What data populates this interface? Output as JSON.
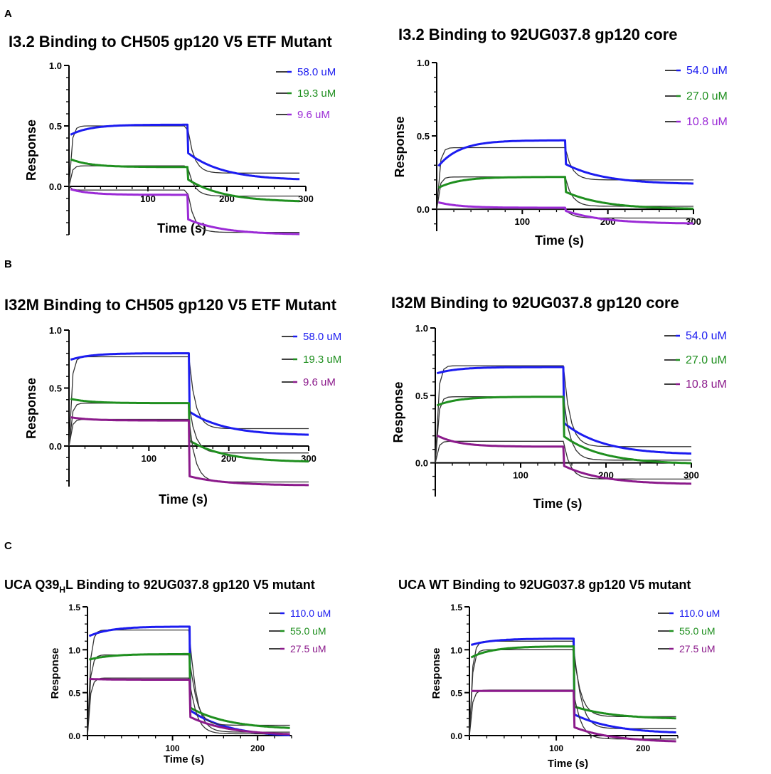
{
  "panel_labels": [
    "A",
    "B",
    "C"
  ],
  "chart_data": [
    {
      "type": "line",
      "title": "I3.2 Binding to CH505 gp120 V5 ETF Mutant",
      "xlabel": "Time (s)",
      "ylabel": "Response",
      "xlim": [
        0,
        300
      ],
      "ylim": [
        -0.4,
        1.0
      ],
      "xticks": [
        100,
        200,
        300
      ],
      "yticks": [
        0.0,
        0.5,
        1.0
      ],
      "ytick_labels": [
        "0.0",
        "0.5",
        "1.0"
      ],
      "series": [
        {
          "name": "58.0 uM",
          "color": "#1c1cf0",
          "assoc_start": 0.42,
          "assoc_end": 0.51,
          "dissoc_start": 0.28,
          "dissoc_end": 0.05,
          "fit_level": 0.5,
          "fit_end": 0.11
        },
        {
          "name": "19.3 uM",
          "color": "#1f8f1f",
          "assoc_start": 0.23,
          "assoc_end": 0.16,
          "dissoc_start": 0.06,
          "dissoc_end": -0.13,
          "fit_level": 0.17,
          "fit_end": -0.08
        },
        {
          "name": "9.6 uM",
          "color": "#9b2ad6",
          "assoc_start": -0.02,
          "assoc_end": -0.07,
          "dissoc_start": -0.27,
          "dissoc_end": -0.4,
          "fit_level": -0.03,
          "fit_end": -0.38
        }
      ]
    },
    {
      "type": "line",
      "title": "I3.2 Binding to 92UG037.8 gp120 core",
      "xlabel": "Time (s)",
      "ylabel": "Response",
      "xlim": [
        0,
        300
      ],
      "ylim": [
        -0.15,
        1.0
      ],
      "xticks": [
        100,
        200,
        300
      ],
      "yticks": [
        0.0,
        0.5,
        1.0
      ],
      "ytick_labels": [
        "0.0",
        "0.5",
        "1.0"
      ],
      "series": [
        {
          "name": "54.0 uM",
          "color": "#1c1cf0",
          "assoc_start": 0.28,
          "assoc_end": 0.47,
          "dissoc_start": 0.31,
          "dissoc_end": 0.17,
          "fit_level": 0.42,
          "fit_end": 0.2
        },
        {
          "name": "27.0 uM",
          "color": "#1f8f1f",
          "assoc_start": 0.14,
          "assoc_end": 0.22,
          "dissoc_start": 0.12,
          "dissoc_end": 0.0,
          "fit_level": 0.22,
          "fit_end": 0.02
        },
        {
          "name": "10.8 uM",
          "color": "#9b2ad6",
          "assoc_start": 0.05,
          "assoc_end": 0.01,
          "dissoc_start": -0.01,
          "dissoc_end": -0.1,
          "fit_level": 0.0,
          "fit_end": -0.06
        }
      ]
    },
    {
      "type": "line",
      "title": "I32M Binding to CH505 gp120 V5 ETF Mutant",
      "xlabel": "Time (s)",
      "ylabel": "Response",
      "xlim": [
        0,
        300
      ],
      "ylim": [
        -0.35,
        1.0
      ],
      "xticks": [
        100,
        200,
        300
      ],
      "yticks": [
        0.0,
        0.5,
        1.0
      ],
      "ytick_labels": [
        "0.0",
        "0.5",
        "1.0"
      ],
      "series": [
        {
          "name": "58.0 uM",
          "color": "#1c1cf0",
          "assoc_start": 0.74,
          "assoc_end": 0.8,
          "dissoc_start": 0.3,
          "dissoc_end": 0.09,
          "fit_level": 0.77,
          "fit_end": 0.15
        },
        {
          "name": "19.3 uM",
          "color": "#1f8f1f",
          "assoc_start": 0.41,
          "assoc_end": 0.37,
          "dissoc_start": 0.05,
          "dissoc_end": -0.14,
          "fit_level": 0.37,
          "fit_end": -0.06
        },
        {
          "name": "9.6 uM",
          "color": "#8b1a8b",
          "assoc_start": 0.25,
          "assoc_end": 0.22,
          "dissoc_start": -0.26,
          "dissoc_end": -0.34,
          "fit_level": 0.23,
          "fit_end": -0.31
        }
      ]
    },
    {
      "type": "line",
      "title": "I32M Binding to 92UG037.8 gp120 core",
      "xlabel": "Time (s)",
      "ylabel": "Response",
      "xlim": [
        0,
        300
      ],
      "ylim": [
        -0.25,
        1.0
      ],
      "xticks": [
        100,
        200,
        300
      ],
      "yticks": [
        0.0,
        0.5,
        1.0
      ],
      "ytick_labels": [
        "0.0",
        "0.5",
        "1.0"
      ],
      "series": [
        {
          "name": "54.0 uM",
          "color": "#1c1cf0",
          "assoc_start": 0.66,
          "assoc_end": 0.71,
          "dissoc_start": 0.3,
          "dissoc_end": 0.06,
          "fit_level": 0.72,
          "fit_end": 0.12
        },
        {
          "name": "27.0 uM",
          "color": "#1f8f1f",
          "assoc_start": 0.42,
          "assoc_end": 0.49,
          "dissoc_start": 0.2,
          "dissoc_end": -0.01,
          "fit_level": 0.49,
          "fit_end": 0.02
        },
        {
          "name": "10.8 uM",
          "color": "#8b1a8b",
          "assoc_start": 0.21,
          "assoc_end": 0.12,
          "dissoc_start": -0.02,
          "dissoc_end": -0.16,
          "fit_level": 0.16,
          "fit_end": -0.12
        }
      ]
    },
    {
      "type": "line",
      "title": "UCA Q39",
      "title_sub": "H",
      "title_rest": "L  Binding to 92UG037.8 gp120 V5 mutant",
      "xlabel": "Time (s)",
      "ylabel": "Response",
      "xlim": [
        0,
        240
      ],
      "ylim": [
        -0.05,
        1.5
      ],
      "xticks": [
        100,
        200
      ],
      "yticks": [
        0.0,
        0.5,
        1.0,
        1.5
      ],
      "ytick_labels": [
        "0.0",
        "0.5",
        "1.0",
        "1.5"
      ],
      "series": [
        {
          "name": "110.0 uM",
          "color": "#1c1cf0",
          "assoc_start": 1.15,
          "assoc_end": 1.27,
          "dissoc_start": 0.3,
          "dissoc_end": -0.02,
          "fit_level": 1.23,
          "fit_end": 0.04
        },
        {
          "name": "55.0 uM",
          "color": "#1f8f1f",
          "assoc_start": 0.88,
          "assoc_end": 0.95,
          "dissoc_start": 0.33,
          "dissoc_end": 0.07,
          "fit_level": 0.94,
          "fit_end": 0.12
        },
        {
          "name": "27.5 uM",
          "color": "#8b1a8b",
          "assoc_start": 0.66,
          "assoc_end": 0.65,
          "dissoc_start": 0.22,
          "dissoc_end": 0.0,
          "fit_level": 0.67,
          "fit_end": 0.02
        }
      ]
    },
    {
      "type": "line",
      "title": "UCA WT Binding to 92UG037.8 gp120 V5 mutant",
      "xlabel": "Time (s)",
      "ylabel": "Response",
      "xlim": [
        0,
        240
      ],
      "ylim": [
        -0.05,
        1.5
      ],
      "xticks": [
        100,
        200
      ],
      "yticks": [
        0.0,
        0.5,
        1.0,
        1.5
      ],
      "ytick_labels": [
        "0.0",
        "0.5",
        "1.0",
        "1.5"
      ],
      "series": [
        {
          "name": "110.0 uM",
          "color": "#1c1cf0",
          "assoc_start": 1.05,
          "assoc_end": 1.13,
          "dissoc_start": 0.25,
          "dissoc_end": 0.02,
          "fit_level": 1.1,
          "fit_end": 0.08
        },
        {
          "name": "55.0 uM",
          "color": "#1f8f1f",
          "assoc_start": 0.9,
          "assoc_end": 1.04,
          "dissoc_start": 0.34,
          "dissoc_end": 0.19,
          "fit_level": 1.0,
          "fit_end": 0.22
        },
        {
          "name": "27.5 uM",
          "color": "#8b1a8b",
          "assoc_start": 0.52,
          "assoc_end": 0.52,
          "dissoc_start": 0.1,
          "dissoc_end": -0.08,
          "fit_level": 0.53,
          "fit_end": -0.04
        }
      ]
    }
  ]
}
